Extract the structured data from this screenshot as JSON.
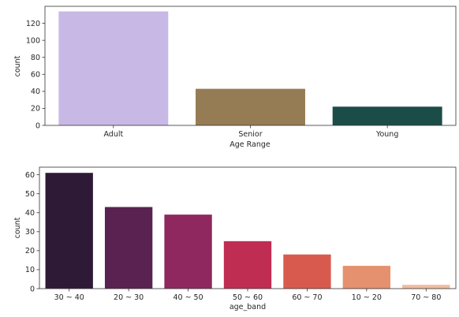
{
  "chart_data": [
    {
      "type": "bar",
      "xlabel": "Age Range",
      "ylabel": "count",
      "ylim": [
        0,
        140
      ],
      "yticks": [
        0,
        20,
        40,
        60,
        80,
        100,
        120
      ],
      "categories": [
        "Adult",
        "Senior",
        "Young"
      ],
      "values": [
        134,
        43,
        22
      ],
      "colors": [
        "#c8b8e6",
        "#967c55",
        "#1c4c48"
      ],
      "grid": false
    },
    {
      "type": "bar",
      "xlabel": "age_band",
      "ylabel": "count",
      "ylim": [
        0,
        64
      ],
      "yticks": [
        0,
        10,
        20,
        30,
        40,
        50,
        60
      ],
      "categories": [
        "30 ~ 40",
        "20 ~ 30",
        "40 ~ 50",
        "50 ~ 60",
        "60 ~ 70",
        "10 ~ 20",
        "70 ~ 80"
      ],
      "values": [
        61,
        43,
        39,
        25,
        18,
        12,
        2
      ],
      "colors": [
        "#2e1a37",
        "#5a2250",
        "#8e285e",
        "#c02d53",
        "#d85a4f",
        "#e5906e",
        "#f2bba0"
      ],
      "grid": false
    }
  ]
}
